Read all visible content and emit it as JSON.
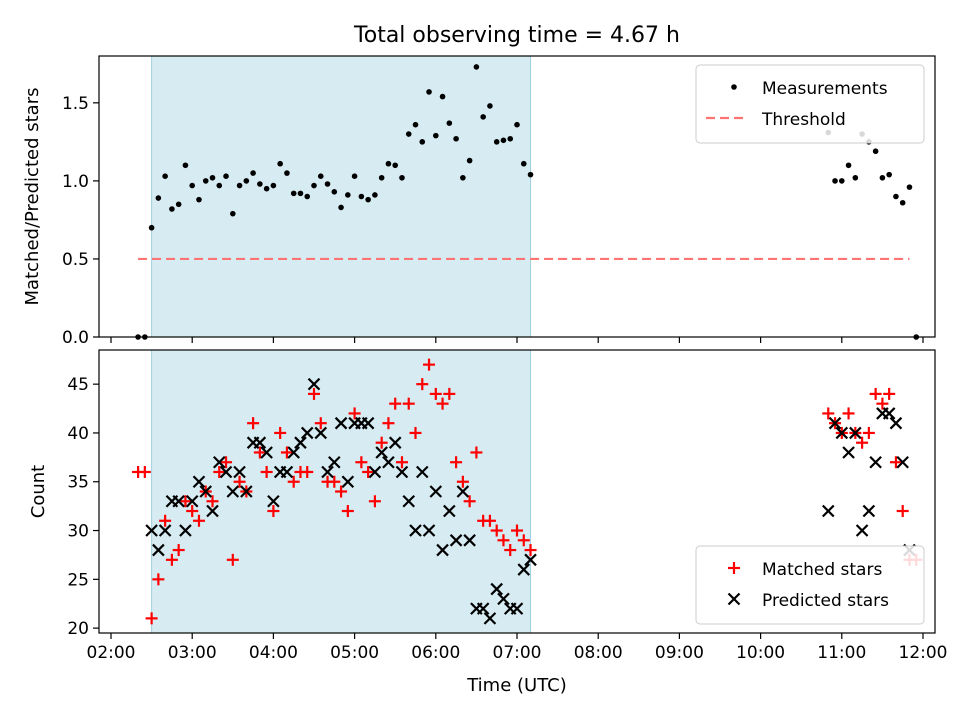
{
  "figure_title": "Total observing time = 4.67 h",
  "chart_data": [
    {
      "type": "scatter",
      "title": "Total observing time = 4.67 h",
      "xlabel": "",
      "ylabel": "Matched/Predicted stars",
      "xlim": [
        "02:00",
        "12:00"
      ],
      "ylim": [
        0,
        1.8
      ],
      "xticks": [
        "02:00",
        "03:00",
        "04:00",
        "05:00",
        "06:00",
        "07:00",
        "08:00",
        "09:00",
        "10:00",
        "11:00",
        "12:00"
      ],
      "yticks": [
        0.0,
        0.5,
        1.0,
        1.5
      ],
      "ytick_labels": [
        "0.0",
        "0.5",
        "1.0",
        "1.5"
      ],
      "shaded_span": [
        "02:30",
        "07:10"
      ],
      "legend_position": "top-right",
      "series": [
        {
          "name": "Measurements",
          "marker": "dot",
          "color": "#000000",
          "points": [
            [
              "02:20",
              0.0
            ],
            [
              "02:25",
              0.0
            ],
            [
              "02:30",
              0.7
            ],
            [
              "02:35",
              0.89
            ],
            [
              "02:40",
              1.03
            ],
            [
              "02:45",
              0.82
            ],
            [
              "02:50",
              0.85
            ],
            [
              "02:55",
              1.1
            ],
            [
              "03:00",
              0.97
            ],
            [
              "03:05",
              0.88
            ],
            [
              "03:10",
              1.0
            ],
            [
              "03:15",
              1.02
            ],
            [
              "03:20",
              0.97
            ],
            [
              "03:25",
              1.03
            ],
            [
              "03:30",
              0.79
            ],
            [
              "03:35",
              0.97
            ],
            [
              "03:40",
              1.0
            ],
            [
              "03:45",
              1.05
            ],
            [
              "03:50",
              0.98
            ],
            [
              "03:55",
              0.95
            ],
            [
              "04:00",
              0.97
            ],
            [
              "04:05",
              1.11
            ],
            [
              "04:10",
              1.05
            ],
            [
              "04:15",
              0.92
            ],
            [
              "04:20",
              0.92
            ],
            [
              "04:25",
              0.9
            ],
            [
              "04:30",
              0.97
            ],
            [
              "04:35",
              1.03
            ],
            [
              "04:40",
              0.98
            ],
            [
              "04:45",
              0.93
            ],
            [
              "04:50",
              0.83
            ],
            [
              "04:55",
              0.91
            ],
            [
              "05:00",
              1.03
            ],
            [
              "05:05",
              0.9
            ],
            [
              "05:10",
              0.88
            ],
            [
              "05:15",
              0.91
            ],
            [
              "05:20",
              1.02
            ],
            [
              "05:25",
              1.11
            ],
            [
              "05:30",
              1.1
            ],
            [
              "05:35",
              1.02
            ],
            [
              "05:40",
              1.3
            ],
            [
              "05:45",
              1.36
            ],
            [
              "05:50",
              1.25
            ],
            [
              "05:55",
              1.57
            ],
            [
              "06:00",
              1.29
            ],
            [
              "06:05",
              1.54
            ],
            [
              "06:10",
              1.37
            ],
            [
              "06:15",
              1.27
            ],
            [
              "06:20",
              1.02
            ],
            [
              "06:25",
              1.13
            ],
            [
              "06:30",
              1.73
            ],
            [
              "06:35",
              1.41
            ],
            [
              "06:40",
              1.48
            ],
            [
              "06:45",
              1.25
            ],
            [
              "06:50",
              1.26
            ],
            [
              "06:55",
              1.27
            ],
            [
              "07:00",
              1.36
            ],
            [
              "07:05",
              1.11
            ],
            [
              "07:10",
              1.04
            ],
            [
              "10:50",
              1.31
            ],
            [
              "10:55",
              1.0
            ],
            [
              "11:00",
              1.0
            ],
            [
              "11:05",
              1.1
            ],
            [
              "11:10",
              1.02
            ],
            [
              "11:15",
              1.3
            ],
            [
              "11:20",
              1.25
            ],
            [
              "11:25",
              1.19
            ],
            [
              "11:30",
              1.02
            ],
            [
              "11:35",
              1.04
            ],
            [
              "11:40",
              0.9
            ],
            [
              "11:45",
              0.86
            ],
            [
              "11:50",
              0.96
            ],
            [
              "11:55",
              0.0
            ]
          ]
        },
        {
          "name": "Threshold",
          "style": "dashed",
          "color": "#ff7373",
          "points": [
            [
              "02:20",
              0.5
            ],
            [
              "11:50",
              0.5
            ]
          ]
        }
      ]
    },
    {
      "type": "scatter",
      "xlabel": "Time (UTC)",
      "ylabel": "Count",
      "xlim": [
        "02:00",
        "12:00"
      ],
      "ylim": [
        19.5,
        48.5
      ],
      "xticks": [
        "02:00",
        "03:00",
        "04:00",
        "05:00",
        "06:00",
        "07:00",
        "08:00",
        "09:00",
        "10:00",
        "11:00",
        "12:00"
      ],
      "yticks": [
        20,
        25,
        30,
        35,
        40,
        45
      ],
      "ytick_labels": [
        "20",
        "25",
        "30",
        "35",
        "40",
        "45"
      ],
      "shaded_span": [
        "02:30",
        "07:10"
      ],
      "legend_position": "bottom-right",
      "series": [
        {
          "name": "Matched stars",
          "marker": "plus",
          "color": "#ff0000",
          "points": [
            [
              "02:20",
              36
            ],
            [
              "02:25",
              36
            ],
            [
              "02:30",
              21
            ],
            [
              "02:35",
              25
            ],
            [
              "02:40",
              31
            ],
            [
              "02:45",
              27
            ],
            [
              "02:50",
              28
            ],
            [
              "02:55",
              33
            ],
            [
              "03:00",
              32
            ],
            [
              "03:05",
              31
            ],
            [
              "03:10",
              34
            ],
            [
              "03:15",
              33
            ],
            [
              "03:20",
              36
            ],
            [
              "03:25",
              37
            ],
            [
              "03:30",
              27
            ],
            [
              "03:35",
              35
            ],
            [
              "03:40",
              34
            ],
            [
              "03:45",
              41
            ],
            [
              "03:50",
              38
            ],
            [
              "03:55",
              36
            ],
            [
              "04:00",
              32
            ],
            [
              "04:05",
              40
            ],
            [
              "04:10",
              38
            ],
            [
              "04:15",
              35
            ],
            [
              "04:20",
              36
            ],
            [
              "04:25",
              36
            ],
            [
              "04:30",
              44
            ],
            [
              "04:35",
              41
            ],
            [
              "04:40",
              35
            ],
            [
              "04:45",
              35
            ],
            [
              "04:50",
              34
            ],
            [
              "04:55",
              32
            ],
            [
              "05:00",
              42
            ],
            [
              "05:05",
              37
            ],
            [
              "05:10",
              36
            ],
            [
              "05:15",
              33
            ],
            [
              "05:20",
              39
            ],
            [
              "05:25",
              41
            ],
            [
              "05:30",
              43
            ],
            [
              "05:35",
              37
            ],
            [
              "05:40",
              43
            ],
            [
              "05:45",
              40
            ],
            [
              "05:50",
              45
            ],
            [
              "05:55",
              47
            ],
            [
              "06:00",
              44
            ],
            [
              "06:05",
              43
            ],
            [
              "06:10",
              44
            ],
            [
              "06:15",
              37
            ],
            [
              "06:20",
              35
            ],
            [
              "06:25",
              33
            ],
            [
              "06:30",
              38
            ],
            [
              "06:35",
              31
            ],
            [
              "06:40",
              31
            ],
            [
              "06:45",
              30
            ],
            [
              "06:50",
              29
            ],
            [
              "06:55",
              28
            ],
            [
              "07:00",
              30
            ],
            [
              "07:05",
              29
            ],
            [
              "07:10",
              28
            ],
            [
              "10:50",
              42
            ],
            [
              "10:55",
              41
            ],
            [
              "11:00",
              40
            ],
            [
              "11:05",
              42
            ],
            [
              "11:10",
              40
            ],
            [
              "11:15",
              39
            ],
            [
              "11:20",
              40
            ],
            [
              "11:25",
              44
            ],
            [
              "11:30",
              43
            ],
            [
              "11:35",
              44
            ],
            [
              "11:40",
              37
            ],
            [
              "11:45",
              32
            ],
            [
              "11:50",
              27
            ],
            [
              "11:55",
              27
            ]
          ]
        },
        {
          "name": "Predicted stars",
          "marker": "x",
          "color": "#000000",
          "points": [
            [
              "02:30",
              30
            ],
            [
              "02:35",
              28
            ],
            [
              "02:40",
              30
            ],
            [
              "02:45",
              33
            ],
            [
              "02:50",
              33
            ],
            [
              "02:55",
              30
            ],
            [
              "03:00",
              33
            ],
            [
              "03:05",
              35
            ],
            [
              "03:10",
              34
            ],
            [
              "03:15",
              32
            ],
            [
              "03:20",
              37
            ],
            [
              "03:25",
              36
            ],
            [
              "03:30",
              34
            ],
            [
              "03:35",
              36
            ],
            [
              "03:40",
              34
            ],
            [
              "03:45",
              39
            ],
            [
              "03:50",
              39
            ],
            [
              "03:55",
              38
            ],
            [
              "04:00",
              33
            ],
            [
              "04:05",
              36
            ],
            [
              "04:10",
              36
            ],
            [
              "04:15",
              38
            ],
            [
              "04:20",
              39
            ],
            [
              "04:25",
              40
            ],
            [
              "04:30",
              45
            ],
            [
              "04:35",
              40
            ],
            [
              "04:40",
              36
            ],
            [
              "04:45",
              37
            ],
            [
              "04:50",
              41
            ],
            [
              "04:55",
              35
            ],
            [
              "05:00",
              41
            ],
            [
              "05:05",
              41
            ],
            [
              "05:10",
              41
            ],
            [
              "05:15",
              36
            ],
            [
              "05:20",
              38
            ],
            [
              "05:25",
              37
            ],
            [
              "05:30",
              39
            ],
            [
              "05:35",
              36
            ],
            [
              "05:40",
              33
            ],
            [
              "05:45",
              30
            ],
            [
              "05:50",
              36
            ],
            [
              "05:55",
              30
            ],
            [
              "06:00",
              34
            ],
            [
              "06:05",
              28
            ],
            [
              "06:10",
              32
            ],
            [
              "06:15",
              29
            ],
            [
              "06:20",
              34
            ],
            [
              "06:25",
              29
            ],
            [
              "06:30",
              22
            ],
            [
              "06:35",
              22
            ],
            [
              "06:40",
              21
            ],
            [
              "06:45",
              24
            ],
            [
              "06:50",
              23
            ],
            [
              "06:55",
              22
            ],
            [
              "07:00",
              22
            ],
            [
              "07:05",
              26
            ],
            [
              "07:10",
              27
            ],
            [
              "10:50",
              32
            ],
            [
              "10:55",
              41
            ],
            [
              "11:00",
              40
            ],
            [
              "11:05",
              38
            ],
            [
              "11:10",
              40
            ],
            [
              "11:15",
              30
            ],
            [
              "11:20",
              32
            ],
            [
              "11:25",
              37
            ],
            [
              "11:30",
              42
            ],
            [
              "11:35",
              42
            ],
            [
              "11:40",
              41
            ],
            [
              "11:45",
              37
            ],
            [
              "11:50",
              28
            ]
          ]
        }
      ]
    }
  ]
}
